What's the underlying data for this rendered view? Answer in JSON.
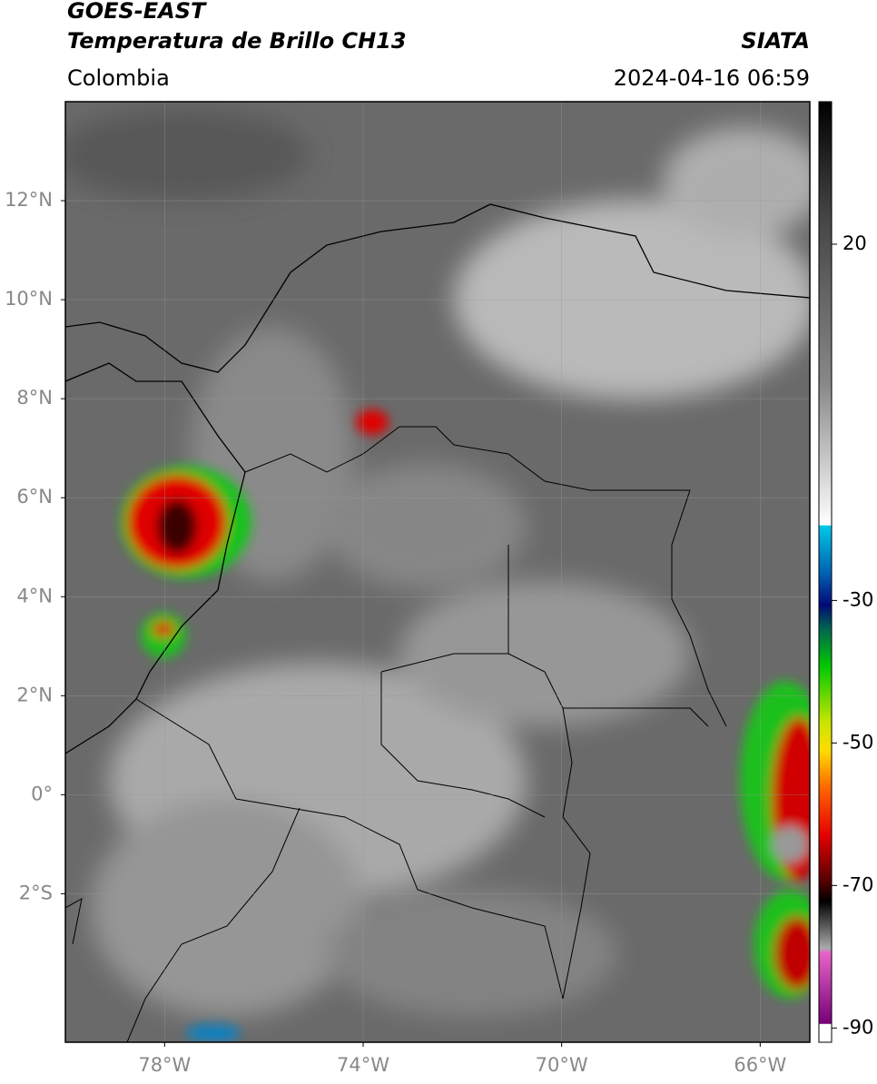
{
  "header": {
    "title": "GOES-EAST",
    "subtitle": "Temperatura de Brillo CH13",
    "source": "SIATA",
    "region": "Colombia",
    "datetime": "2024-04-16 06:59"
  },
  "map": {
    "lonlim": [
      -80,
      -65
    ],
    "latlim": [
      -5,
      14
    ],
    "xticks": [
      {
        "value": -78,
        "label": "78°W"
      },
      {
        "value": -74,
        "label": "74°W"
      },
      {
        "value": -70,
        "label": "70°W"
      },
      {
        "value": -66,
        "label": "66°W"
      }
    ],
    "yticks": [
      {
        "value": 12,
        "label": "12°N"
      },
      {
        "value": 10,
        "label": "10°N"
      },
      {
        "value": 8,
        "label": "8°N"
      },
      {
        "value": 6,
        "label": "6°N"
      },
      {
        "value": 4,
        "label": "4°N"
      },
      {
        "value": 2,
        "label": "2°N"
      },
      {
        "value": 0,
        "label": "0°"
      },
      {
        "value": -2,
        "label": "2°S"
      }
    ]
  },
  "colorbar": {
    "lim": [
      -92,
      40
    ],
    "ticks": [
      20,
      -30,
      -50,
      -70,
      -90
    ]
  }
}
